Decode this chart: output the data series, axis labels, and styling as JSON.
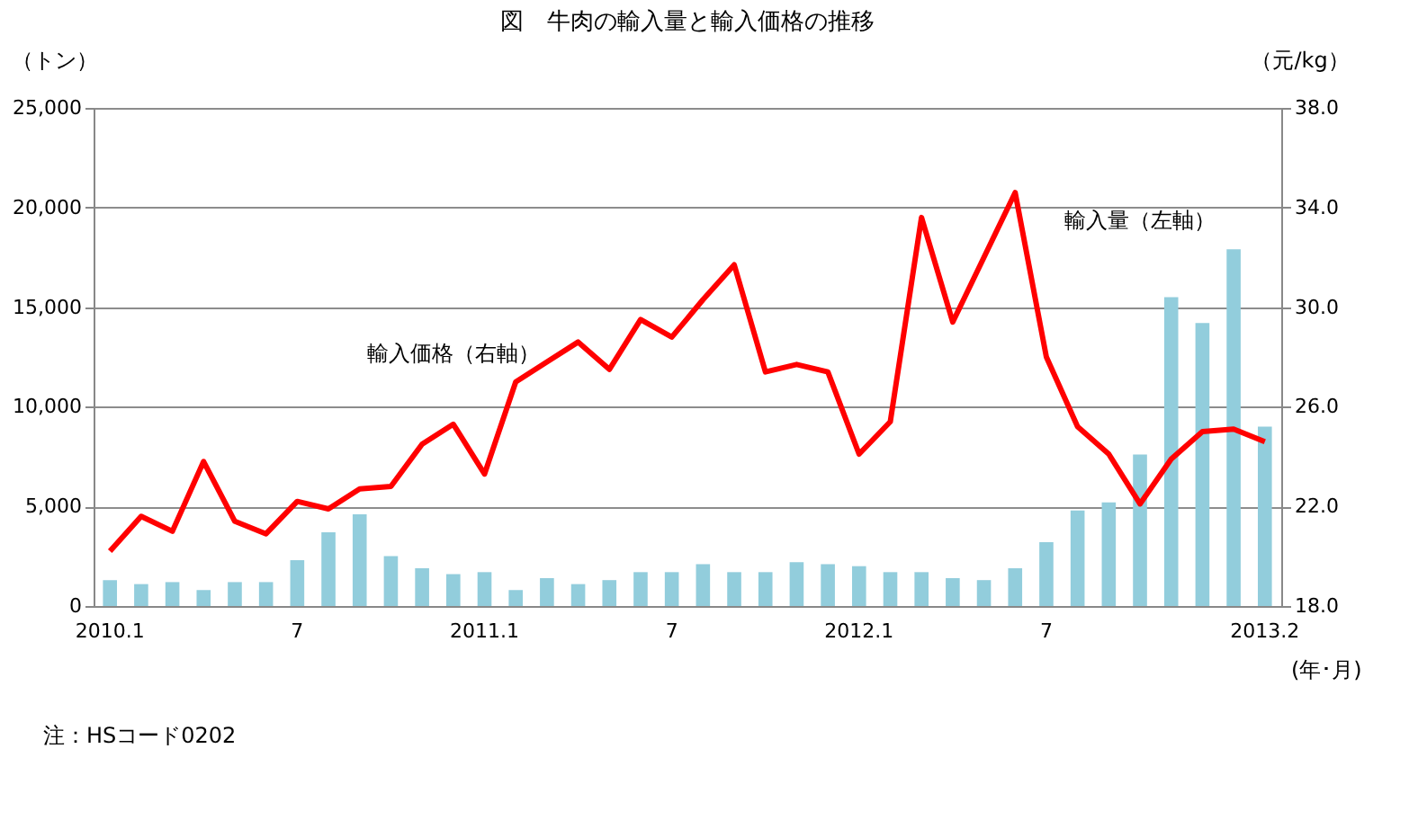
{
  "chart_data": {
    "type": "bar",
    "title": "図　牛肉の輸入量と輸入価格の推移",
    "ylabel": "（トン）",
    "y2label": "（元/kg）",
    "xlabel": "(年･月)",
    "categories": [
      "2010.1",
      null,
      null,
      null,
      null,
      null,
      "7",
      null,
      null,
      null,
      null,
      null,
      "2011.1",
      null,
      null,
      null,
      null,
      null,
      "7",
      null,
      null,
      null,
      null,
      null,
      "2012.1",
      null,
      null,
      null,
      null,
      null,
      "7",
      null,
      null,
      null,
      null,
      null,
      null,
      "2013.2"
    ],
    "series": [
      {
        "name": "輸入量（左軸）",
        "color": "#92cddc",
        "values": [
          1300,
          1100,
          1200,
          800,
          1200,
          1200,
          2300,
          3700,
          4600,
          2500,
          1900,
          1600,
          1700,
          800,
          1400,
          1100,
          1300,
          1700,
          1700,
          2100,
          1700,
          1700,
          2200,
          2100,
          2000,
          1700,
          1700,
          1400,
          1300,
          1900,
          3200,
          4800,
          5200,
          7600,
          15500,
          14200,
          17900,
          9000
        ]
      },
      {
        "name": "輸入価格（右軸）",
        "type": "line",
        "axis": "y2",
        "color": "#ff0000",
        "values": [
          20.2,
          21.6,
          21.0,
          23.8,
          21.4,
          20.9,
          22.2,
          21.9,
          22.7,
          22.8,
          24.5,
          25.3,
          23.3,
          27.0,
          27.8,
          28.6,
          27.5,
          29.5,
          28.8,
          30.3,
          31.7,
          27.4,
          27.7,
          27.4,
          24.1,
          25.4,
          33.6,
          29.4,
          32.0,
          34.6,
          28.0,
          25.2,
          24.1,
          22.1,
          23.9,
          25.0,
          25.1,
          24.6
        ]
      }
    ],
    "ylim": [
      0,
      25000
    ],
    "yticks": [
      {
        "value": 0,
        "label": "0"
      },
      {
        "value": 5000,
        "label": "5,000"
      },
      {
        "value": 10000,
        "label": "10,000"
      },
      {
        "value": 15000,
        "label": "15,000"
      },
      {
        "value": 20000,
        "label": "20,000"
      },
      {
        "value": 25000,
        "label": "25,000"
      }
    ],
    "y2lim": [
      18,
      38
    ],
    "y2ticks": [
      {
        "value": 18,
        "label": "18.0"
      },
      {
        "value": 22,
        "label": "22.0"
      },
      {
        "value": 26,
        "label": "26.0"
      },
      {
        "value": 30,
        "label": "30.0"
      },
      {
        "value": 34,
        "label": "34.0"
      },
      {
        "value": 38,
        "label": "38.0"
      }
    ],
    "grid": "y",
    "marker": "none",
    "line_style": "solid",
    "annotations": [
      "注：HSコード0202"
    ]
  }
}
